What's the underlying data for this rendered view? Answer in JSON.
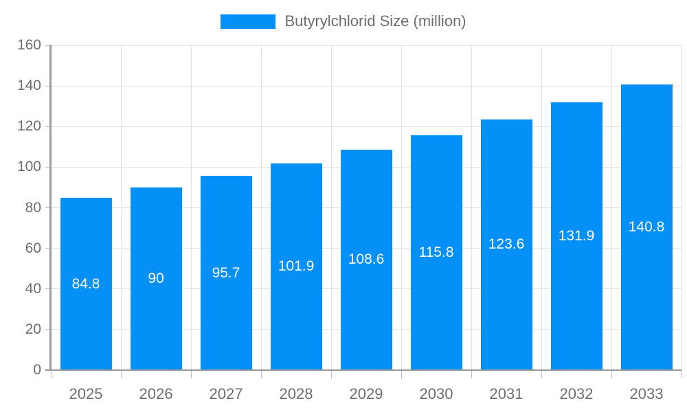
{
  "chart_data": {
    "type": "bar",
    "title": "Butyrylchlorid Size (million)",
    "categories": [
      "2025",
      "2026",
      "2027",
      "2028",
      "2029",
      "2030",
      "2031",
      "2032",
      "2033"
    ],
    "values": [
      84.8,
      90,
      95.7,
      101.9,
      108.6,
      115.8,
      123.6,
      131.9,
      140.8
    ],
    "xlabel": "",
    "ylabel": "",
    "ylim": [
      0,
      160
    ],
    "y_tick_step": 20,
    "y_tick_labels": [
      "0",
      "20",
      "40",
      "60",
      "80",
      "100",
      "120",
      "140",
      "160"
    ],
    "grid": true,
    "legend_position": "top",
    "bar_color": "#0590f8",
    "bar_value_label_color": "#ffffff",
    "axis_text_color": "#6e6e6e",
    "grid_color": "#e3e3e3",
    "axis_line_color": "#9a9a9a",
    "tick_color": "#bdbdbd"
  }
}
